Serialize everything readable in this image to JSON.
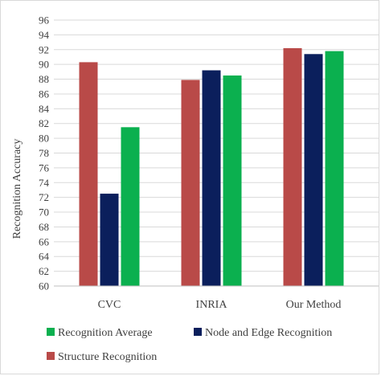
{
  "chart_data": {
    "type": "bar",
    "title": "",
    "xlabel": "",
    "ylabel": "Recognition Accuracy",
    "ylim": [
      60,
      96
    ],
    "yticks": [
      60,
      62,
      64,
      66,
      68,
      70,
      72,
      74,
      76,
      78,
      80,
      82,
      84,
      86,
      88,
      90,
      92,
      94,
      96
    ],
    "categories": [
      "CVC",
      "INRIA",
      "Our Method"
    ],
    "grid": true,
    "legend_position": "bottom",
    "series": [
      {
        "name": "Structure Recognition",
        "color": "#b94a48",
        "values": [
          90.3,
          87.9,
          92.2
        ]
      },
      {
        "name": "Node and Edge Recognition",
        "color": "#0b1f5c",
        "values": [
          72.5,
          89.2,
          91.4
        ]
      },
      {
        "name": "Recognition Average",
        "color": "#0bb04f",
        "values": [
          81.5,
          88.5,
          91.8
        ]
      }
    ],
    "legend_order": [
      2,
      1,
      0
    ]
  }
}
